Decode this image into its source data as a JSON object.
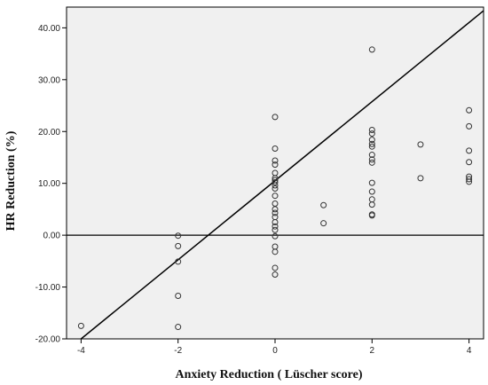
{
  "chart_data": {
    "type": "scatter",
    "title": "",
    "xlabel": "Anxiety Reduction ( Lüscher score)",
    "ylabel": "HR Reduction (%)",
    "xlim": [
      -4.3,
      4.3
    ],
    "ylim": [
      -20,
      44
    ],
    "x_ticks": [
      -4,
      -2,
      0,
      2,
      4
    ],
    "x_tick_labels": [
      "-4",
      "-2",
      "0",
      "2",
      "4"
    ],
    "y_ticks": [
      -20,
      -10,
      0,
      10,
      20,
      30,
      40
    ],
    "y_tick_labels": [
      "-20.00",
      "-10.00",
      "0.00",
      "10.00",
      "20.00",
      "30.00",
      "40.00"
    ],
    "grid": false,
    "background_color": "#f0f0f0",
    "marker_color": "#333333",
    "reference_line_y": 0,
    "fit_line": {
      "x": [
        -4,
        4.3
      ],
      "y": [
        -20,
        43.3
      ]
    },
    "series": [
      {
        "points": [
          {
            "x": -4,
            "y": -17.5
          },
          {
            "x": -2,
            "y": -0.1
          },
          {
            "x": -2,
            "y": -2.1
          },
          {
            "x": -2,
            "y": -5.1
          },
          {
            "x": -2,
            "y": -11.7
          },
          {
            "x": -2,
            "y": -17.7
          },
          {
            "x": 0,
            "y": 22.8
          },
          {
            "x": 0,
            "y": 16.7
          },
          {
            "x": 0,
            "y": 14.4
          },
          {
            "x": 0,
            "y": 13.6
          },
          {
            "x": 0,
            "y": 12.0
          },
          {
            "x": 0,
            "y": 11.0
          },
          {
            "x": 0,
            "y": 10.6
          },
          {
            "x": 0,
            "y": 10.2
          },
          {
            "x": 0,
            "y": 9.6
          },
          {
            "x": 0,
            "y": 9.0
          },
          {
            "x": 0,
            "y": 7.6
          },
          {
            "x": 0,
            "y": 6.1
          },
          {
            "x": 0,
            "y": 5.0
          },
          {
            "x": 0,
            "y": 4.3
          },
          {
            "x": 0,
            "y": 3.5
          },
          {
            "x": 0,
            "y": 2.5
          },
          {
            "x": 0,
            "y": 1.7
          },
          {
            "x": 0,
            "y": 1.0
          },
          {
            "x": 0,
            "y": -0.2
          },
          {
            "x": 0,
            "y": -2.2
          },
          {
            "x": 0,
            "y": -3.2
          },
          {
            "x": 0,
            "y": -6.3
          },
          {
            "x": 0,
            "y": -7.6
          },
          {
            "x": 1,
            "y": 5.8
          },
          {
            "x": 1,
            "y": 2.3
          },
          {
            "x": 2,
            "y": 35.8
          },
          {
            "x": 2,
            "y": 20.3
          },
          {
            "x": 2,
            "y": 19.6
          },
          {
            "x": 2,
            "y": 18.4
          },
          {
            "x": 2,
            "y": 17.6
          },
          {
            "x": 2,
            "y": 17.1
          },
          {
            "x": 2,
            "y": 15.5
          },
          {
            "x": 2,
            "y": 14.6
          },
          {
            "x": 2,
            "y": 14.0
          },
          {
            "x": 2,
            "y": 10.1
          },
          {
            "x": 2,
            "y": 8.4
          },
          {
            "x": 2,
            "y": 6.9
          },
          {
            "x": 2,
            "y": 5.9
          },
          {
            "x": 2,
            "y": 4.0
          },
          {
            "x": 2,
            "y": 3.8
          },
          {
            "x": 3,
            "y": 17.5
          },
          {
            "x": 3,
            "y": 11.0
          },
          {
            "x": 4,
            "y": 24.1
          },
          {
            "x": 4,
            "y": 21.0
          },
          {
            "x": 4,
            "y": 16.3
          },
          {
            "x": 4,
            "y": 14.1
          },
          {
            "x": 4,
            "y": 11.3
          },
          {
            "x": 4,
            "y": 10.8
          },
          {
            "x": 4,
            "y": 10.3
          }
        ]
      }
    ]
  }
}
